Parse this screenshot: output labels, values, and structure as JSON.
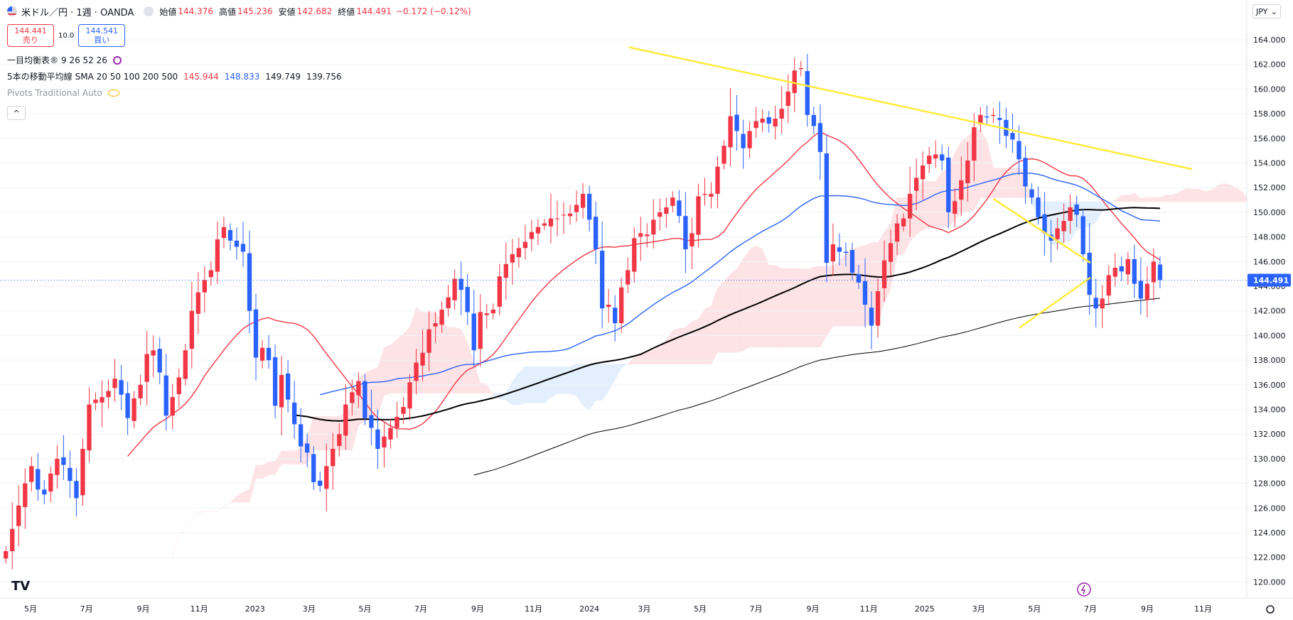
{
  "header": {
    "symbol_title": "米ドル／円 · 1週 · OANDA",
    "open_label": "始値",
    "open": "144.376",
    "high_label": "高値",
    "high": "145.236",
    "low_label": "安値",
    "low": "142.682",
    "close_label": "終値",
    "close": "144.491",
    "change": "−0.172 (−0.12%)"
  },
  "trade": {
    "sell_price": "144.441",
    "sell_label": "売り",
    "spread": "10.0",
    "buy_price": "144.541",
    "buy_label": "買い"
  },
  "indicators": [
    {
      "name": "一目均衡表®",
      "params": "9 26 52 26"
    },
    {
      "name": "5本の移動平均線",
      "params": "SMA 20 50 100 200 500",
      "values": [
        "145.944",
        "148.833",
        "149.749",
        "139.756"
      ],
      "value_colors": [
        "#f23645",
        "#2962ff",
        "#131722",
        "#131722"
      ]
    },
    {
      "name": "Pivots Traditional Auto",
      "params": ""
    }
  ],
  "currency": "JPY",
  "colors": {
    "up": "#f23645",
    "down": "#2962ff",
    "sma20": "#f23645",
    "sma50": "#2962ff",
    "sma100": "#000000",
    "sma200": "#000000",
    "cloud_bull": "#fde3e5",
    "cloud_bear": "#e3effc",
    "trendline": "#ffeb3b",
    "price_label_bg": "#2962ff"
  },
  "chart_data": {
    "type": "candlestick",
    "interval": "1週",
    "ylim": [
      118.7,
      165.5
    ],
    "y_ticks": [
      "120.000",
      "122.000",
      "124.000",
      "126.000",
      "128.000",
      "130.000",
      "132.000",
      "134.000",
      "136.000",
      "138.000",
      "140.000",
      "142.000",
      "144.000",
      "146.000",
      "148.000",
      "150.000",
      "152.000",
      "154.000",
      "156.000",
      "158.000",
      "160.000",
      "162.000",
      "164.000"
    ],
    "x_labels": [
      {
        "date": "2022-05-01",
        "label": "5月"
      },
      {
        "date": "2022-07-01",
        "label": "7月"
      },
      {
        "date": "2022-09-01",
        "label": "9月"
      },
      {
        "date": "2022-11-01",
        "label": "11月"
      },
      {
        "date": "2023-01-01",
        "label": "2023"
      },
      {
        "date": "2023-03-01",
        "label": "3月"
      },
      {
        "date": "2023-05-01",
        "label": "5月"
      },
      {
        "date": "2023-07-01",
        "label": "7月"
      },
      {
        "date": "2023-09-01",
        "label": "9月"
      },
      {
        "date": "2023-11-01",
        "label": "11月"
      },
      {
        "date": "2024-01-01",
        "label": "2024"
      },
      {
        "date": "2024-03-01",
        "label": "3月"
      },
      {
        "date": "2024-05-01",
        "label": "5月"
      },
      {
        "date": "2024-07-01",
        "label": "7月"
      },
      {
        "date": "2024-09-01",
        "label": "9月"
      },
      {
        "date": "2024-11-01",
        "label": "11月"
      },
      {
        "date": "2025-01-01",
        "label": "2025"
      },
      {
        "date": "2025-03-01",
        "label": "3月"
      },
      {
        "date": "2025-05-01",
        "label": "5月"
      },
      {
        "date": "2025-07-01",
        "label": "7月"
      },
      {
        "date": "2025-09-01",
        "label": "9月"
      },
      {
        "date": "2025-11-01",
        "label": "11月"
      }
    ],
    "start_date": "2022-04-04",
    "closes": [
      122.5,
      124.3,
      126.2,
      128.0,
      129.4,
      127.5,
      127.1,
      128.8,
      130.0,
      129.5,
      128.2,
      126.8,
      130.8,
      134.4,
      134.8,
      135.0,
      135.5,
      136.5,
      135.2,
      133.3,
      134.9,
      136.0,
      138.5,
      138.8,
      137.0,
      133.5,
      135.0,
      136.6,
      138.8,
      142.0,
      143.5,
      144.5,
      145.3,
      147.8,
      148.8,
      147.7,
      147.2,
      146.8,
      142.0,
      138.2,
      139.0,
      138.0,
      134.3,
      136.8,
      134.8,
      132.8,
      131.0,
      130.5,
      128.1,
      127.8,
      129.4,
      130.8,
      132.0,
      134.4,
      135.4,
      136.3,
      133.3,
      132.5,
      130.8,
      131.8,
      132.5,
      133.4,
      134.2,
      136.2,
      137.8,
      138.6,
      140.5,
      141.0,
      142.1,
      143.1,
      144.6,
      143.7,
      141.9,
      138.8,
      141.9,
      141.8,
      142.1,
      144.8,
      145.8,
      146.6,
      147.1,
      147.6,
      148.4,
      148.8,
      149.1,
      149.5,
      149.5,
      149.8,
      149.9,
      150.6,
      151.5,
      149.4,
      147.0,
      142.2,
      142.5,
      141.0,
      143.9,
      145.3,
      147.9,
      148.3,
      148.2,
      149.4,
      150.0,
      150.4,
      151.2,
      149.7,
      147.0,
      148.3,
      151.3,
      151.5,
      151.5,
      153.7,
      155.4,
      157.8,
      156.6,
      155.2,
      156.6,
      157.4,
      157.6,
      157.2,
      157.6,
      158.4,
      159.8,
      161.5,
      161.7,
      157.9,
      157.0,
      154.9,
      145.9,
      147.4,
      146.8,
      146.7,
      145.1,
      144.3,
      142.5,
      140.8,
      143.6,
      146.1,
      147.5,
      149.1,
      149.5,
      151.5,
      152.8,
      153.8,
      154.6,
      154.7,
      154.2,
      150.0,
      150.9,
      152.6,
      154.2,
      156.9,
      157.9,
      157.7,
      157.9,
      157.5,
      156.2,
      155.9,
      154.3,
      152.1,
      151.2,
      149.6,
      148.3,
      147.7,
      148.7,
      149.3,
      150.4,
      149.8,
      146.6,
      143.3,
      142.2,
      143.0,
      144.9,
      145.5,
      145.2,
      146.2,
      144.2,
      143.0,
      144.2,
      146.0,
      144.5
    ]
  }
}
